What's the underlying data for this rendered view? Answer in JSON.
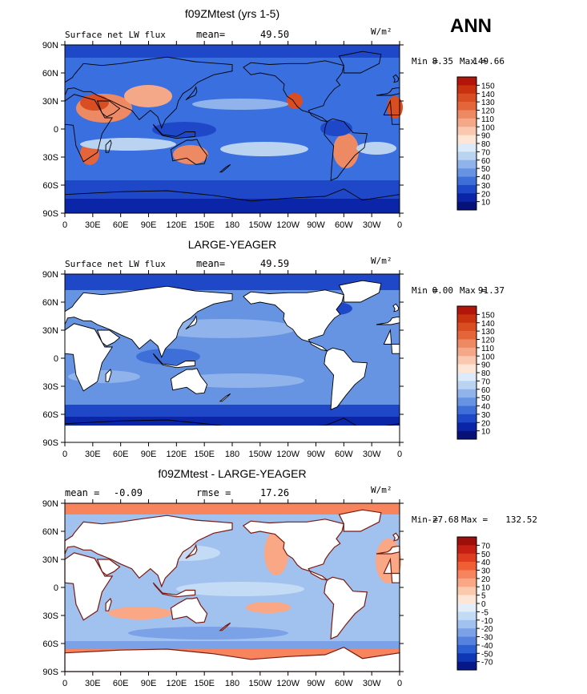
{
  "season": "ANN",
  "lon_ticks": [
    "0",
    "30E",
    "60E",
    "90E",
    "120E",
    "150E",
    "180",
    "150W",
    "120W",
    "90W",
    "60W",
    "30W",
    "0"
  ],
  "lat_ticks": [
    "90N",
    "60N",
    "30N",
    "0",
    "30S",
    "60S",
    "90S"
  ],
  "panels": [
    {
      "title": "f09ZMtest (yrs 1-5)",
      "left_label": "Surface net LW flux",
      "stat_label": "mean=",
      "stat_value": "49.50",
      "units": "W/m²",
      "min_label": "Min =",
      "min_value": "8.35",
      "max_label": "Max =",
      "max_value": "149.66",
      "levels": [
        "150",
        "140",
        "130",
        "120",
        "110",
        "100",
        "90",
        "80",
        "70",
        "60",
        "50",
        "40",
        "30",
        "20",
        "10"
      ],
      "colors": [
        "#b21509",
        "#c8320f",
        "#d94d22",
        "#e5653a",
        "#ee8a63",
        "#f4a888",
        "#fac8af",
        "#fde6d6",
        "#dceaf9",
        "#b9d3f1",
        "#8fb3ea",
        "#6693e2",
        "#3e6fd9",
        "#1f48c9",
        "#0a25a8",
        "#06127a"
      ],
      "background": "#3a6fe0",
      "ocean_land": "ocean"
    },
    {
      "title": "LARGE-YEAGER",
      "left_label": "Surface net LW flux",
      "stat_label": "mean=",
      "stat_value": "49.59",
      "units": "W/m²",
      "min_label": "Min =",
      "min_value": "0.00",
      "max_label": "Max =",
      "max_value": "91.37",
      "levels": [
        "150",
        "140",
        "130",
        "120",
        "110",
        "100",
        "90",
        "80",
        "70",
        "60",
        "50",
        "40",
        "30",
        "20",
        "10"
      ],
      "colors": [
        "#b21509",
        "#c8320f",
        "#d94d22",
        "#e5653a",
        "#ee8a63",
        "#f4a888",
        "#fac8af",
        "#fde6d6",
        "#dceaf9",
        "#b9d3f1",
        "#8fb3ea",
        "#6693e2",
        "#3e6fd9",
        "#1f48c9",
        "#0a25a8",
        "#06127a"
      ],
      "background": "#6693e2",
      "ocean_land": "land-white"
    },
    {
      "title": "f09ZMtest - LARGE-YEAGER",
      "left_label": "mean =",
      "left_value": "-0.09",
      "stat_label": "rmse =",
      "stat_value": "17.26",
      "units": "W/m²",
      "min_label": "Min =",
      "min_value": "-27.68",
      "max_label": "Max =",
      "max_value": "132.52",
      "levels": [
        "70",
        "50",
        "40",
        "30",
        "20",
        "10",
        "5",
        "0",
        "-5",
        "-10",
        "-20",
        "-30",
        "-40",
        "-50",
        "-70"
      ],
      "colors": [
        "#9e0e0b",
        "#c41f12",
        "#dd3c1f",
        "#ef5e35",
        "#f7845c",
        "#f9a785",
        "#fbcaae",
        "#fde6d6",
        "#e4eefb",
        "#c4dbf5",
        "#a1c1ef",
        "#7ba2e7",
        "#5482de",
        "#2c5ed4",
        "#0f37b5",
        "#061887"
      ],
      "background": "#a1c1ef",
      "ocean_land": "land-white"
    }
  ]
}
